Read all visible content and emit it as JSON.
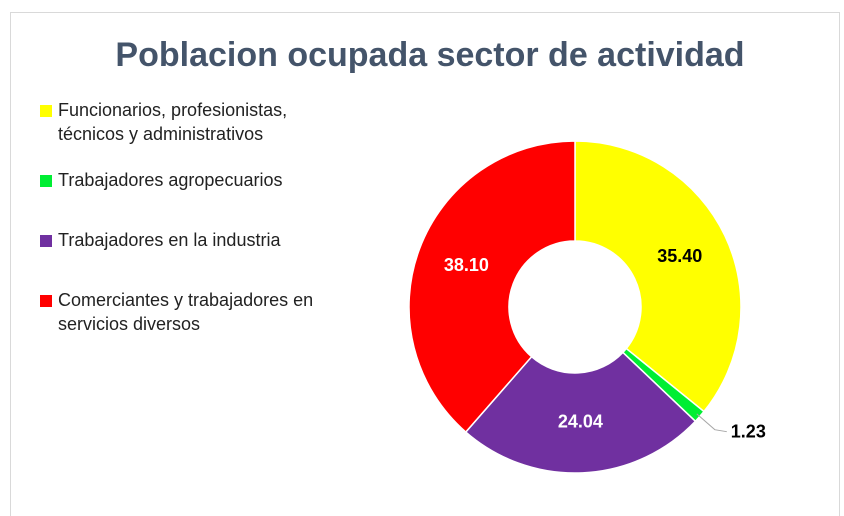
{
  "chart_data": {
    "type": "donut",
    "title": "Poblacion ocupada sector de actividad",
    "categories": [
      "Funcionarios, profesionistas, técnicos y administrativos",
      "Trabajadores agropecuarios",
      "Trabajadores en la industria",
      "Comerciantes y trabajadores en servicios diversos"
    ],
    "values": [
      35.4,
      1.23,
      24.04,
      38.1
    ],
    "value_labels": [
      "35.40",
      "1.23",
      "24.04",
      "38.10"
    ],
    "colors": [
      "#ffff00",
      "#00ee33",
      "#7030a0",
      "#ff0000"
    ],
    "legend": "left"
  }
}
